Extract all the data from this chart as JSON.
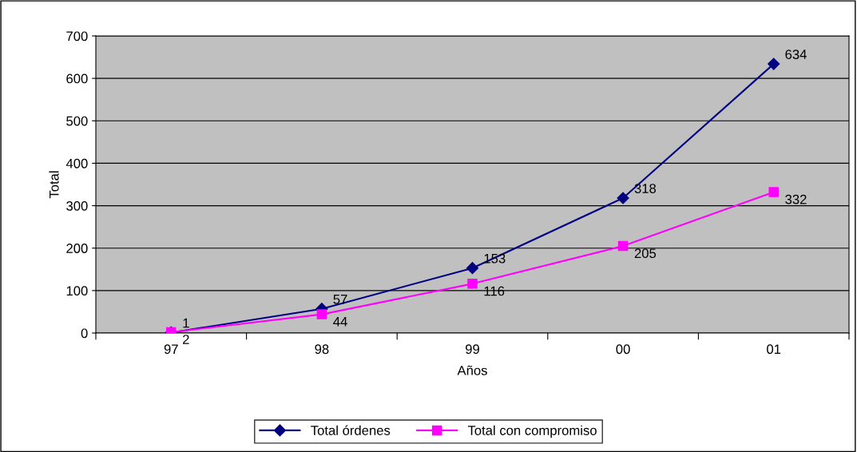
{
  "chart_data": {
    "type": "line",
    "xlabel": "Años",
    "ylabel": "Total",
    "categories": [
      "97",
      "98",
      "99",
      "00",
      "01"
    ],
    "series": [
      {
        "name": "Total órdenes",
        "color": "#000080",
        "marker": "diamond",
        "values": [
          1,
          57,
          153,
          318,
          634
        ]
      },
      {
        "name": "Total con compromiso",
        "color": "#ff00ff",
        "marker": "square",
        "values": [
          2,
          44,
          116,
          205,
          332
        ]
      }
    ],
    "ylim": [
      0,
      700
    ],
    "yticks": [
      0,
      100,
      200,
      300,
      400,
      500,
      600,
      700
    ],
    "grid": "y",
    "legend": "bottom",
    "data_labels": true
  }
}
